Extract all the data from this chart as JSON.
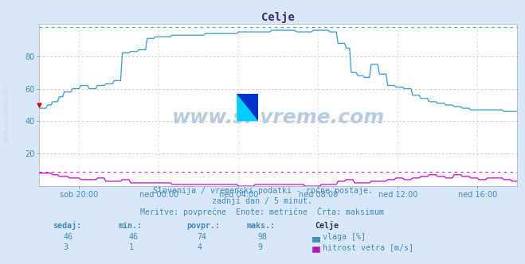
{
  "title": "Celje",
  "bg_color": "#d8e8f8",
  "plot_bg_color": "#ffffff",
  "grid_color_h": "#ffaaaa",
  "grid_color_v": "#ffcccc",
  "ylim": [
    0,
    100
  ],
  "xlim": [
    0,
    288
  ],
  "x_ticks": [
    24,
    72,
    120,
    168,
    216,
    264
  ],
  "x_tick_labels": [
    "sob 20:00",
    "ned 00:00",
    "ned 04:00",
    "ned 08:00",
    "ned 12:00",
    "ned 16:00"
  ],
  "y_ticks": [
    20,
    40,
    60,
    80
  ],
  "humidity_color": "#3399cc",
  "wind_color": "#cc00cc",
  "dashed_max_humidity": 98,
  "dashed_max_wind": 9,
  "watermark": "www.si-vreme.com",
  "watermark_color": "#b8cce0",
  "subtitle1": "Slovenija / vremenski podatki - ročne postaje.",
  "subtitle2": "zadnji dan / 5 minut.",
  "subtitle3": "Meritve: povprečne  Enote: metrične  Črta: maksimum",
  "subtitle_color": "#4488bb",
  "legend_title": "Celje",
  "legend_items": [
    {
      "label": "vlaga [%]",
      "color": "#3399cc"
    },
    {
      "label": "hitrost vetra [m/s]",
      "color": "#cc00cc"
    }
  ],
  "table_headers": [
    "sedaj:",
    "min.:",
    "povpr.:",
    "maks.:"
  ],
  "table_row1": [
    46,
    46,
    74,
    98
  ],
  "table_row2": [
    3,
    1,
    4,
    9
  ],
  "table_color": "#4488bb",
  "ylabel_color": "#c8d8e8",
  "title_color": "#333366"
}
